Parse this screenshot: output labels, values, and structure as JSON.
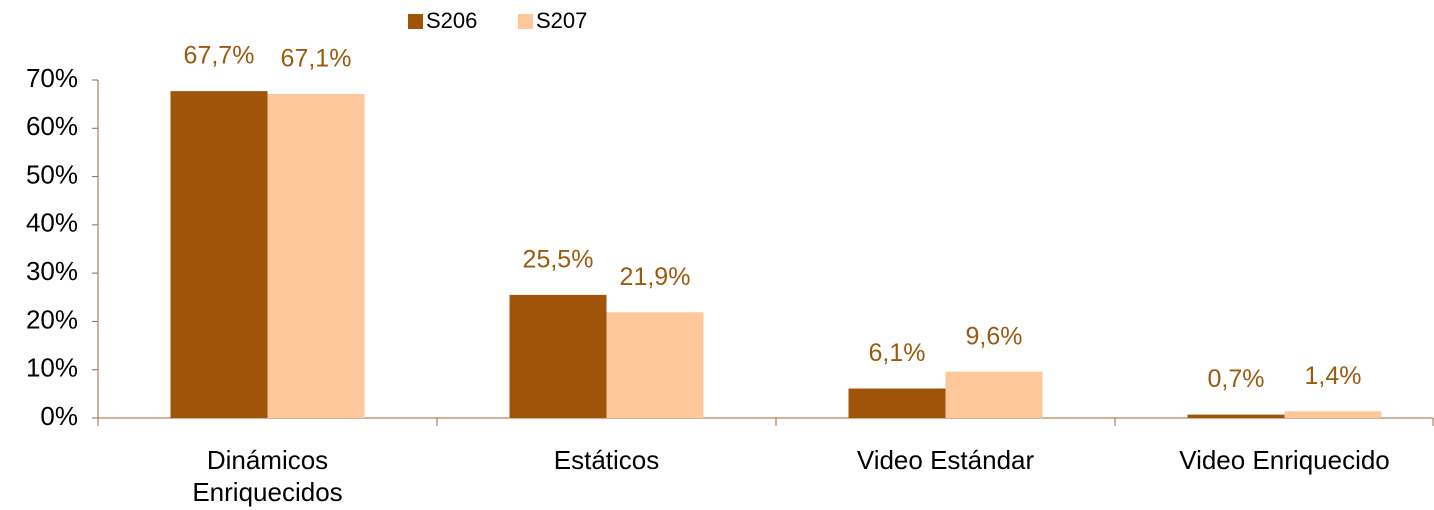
{
  "chart_data": {
    "type": "bar",
    "categories": [
      "Dinámicos\nEnriquecidos",
      "Estáticos",
      "Video Estándar",
      "Video Enriquecido"
    ],
    "series": [
      {
        "name": "S206",
        "color": "#a0540a",
        "values": [
          67.7,
          25.5,
          6.1,
          0.7
        ],
        "value_labels": [
          "67,7%",
          "25,5%",
          "6,1%",
          "0,7%"
        ]
      },
      {
        "name": "S207",
        "color": "#ffc89a",
        "values": [
          67.1,
          21.9,
          9.6,
          1.4
        ],
        "value_labels": [
          "67,1%",
          "21,9%",
          "9,6%",
          "1,4%"
        ]
      }
    ],
    "ylim": [
      0,
      70
    ],
    "yticks": [
      {
        "value": 0,
        "label": "0%"
      },
      {
        "value": 10,
        "label": "10%"
      },
      {
        "value": 20,
        "label": "20%"
      },
      {
        "value": 30,
        "label": "30%"
      },
      {
        "value": 40,
        "label": "40%"
      },
      {
        "value": 50,
        "label": "50%"
      },
      {
        "value": 60,
        "label": "60%"
      },
      {
        "value": 70,
        "label": "70%"
      }
    ],
    "legend": "top",
    "grid": false
  }
}
